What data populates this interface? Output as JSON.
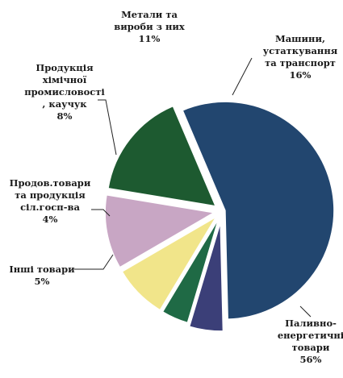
{
  "chart_data": {
    "type": "pie",
    "title": "",
    "slices": [
      {
        "name": "Паливно-енергетичні товари",
        "label_lines": [
          "Паливно-",
          "енергетичні",
          "товари"
        ],
        "pct_label": "56%",
        "value": 56,
        "color": "#22466f"
      },
      {
        "name": "Інші товари",
        "label_lines": [
          "Інші товари"
        ],
        "pct_label": "5%",
        "value": 5,
        "color": "#3b3f78"
      },
      {
        "name": "Продов.товари та продукція сіл.госп-ва",
        "label_lines": [
          "Продов.товари",
          "та продукція",
          "сіл.госп-ва"
        ],
        "pct_label": "4%",
        "value": 4,
        "color": "#1f6a45"
      },
      {
        "name": "Продукція хімічної промисловості, каучук",
        "label_lines": [
          "Продукція",
          "хімічної",
          "промисловості",
          ", каучук"
        ],
        "pct_label": "8%",
        "value": 8,
        "color": "#f1e58a"
      },
      {
        "name": "Метали та вироби з них",
        "label_lines": [
          "Метали та",
          "вироби з них"
        ],
        "pct_label": "11%",
        "value": 11,
        "color": "#c8a6c4"
      },
      {
        "name": "Машини, устаткування та транспорт",
        "label_lines": [
          "Машини,",
          "устаткування",
          "та транспорт"
        ],
        "pct_label": "16%",
        "value": 16,
        "color": "#1d5a30"
      }
    ]
  }
}
